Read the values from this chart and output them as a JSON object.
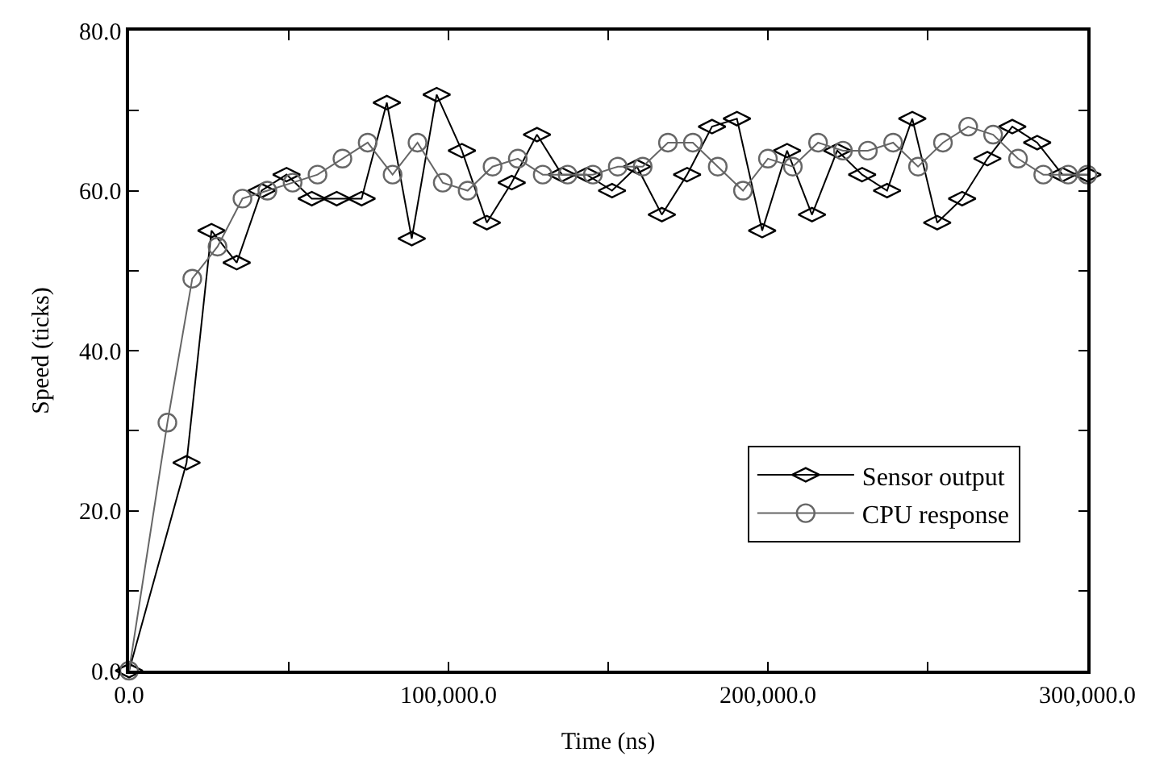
{
  "chart_data": {
    "type": "line",
    "xlabel": "Time (ns)",
    "ylabel": "Speed (ticks)",
    "xlim": [
      0,
      300000
    ],
    "ylim": [
      0,
      80
    ],
    "xticks": [
      {
        "value": 0,
        "label": "0.0"
      },
      {
        "value": 50000,
        "label": null
      },
      {
        "value": 100000,
        "label": "100,000.0"
      },
      {
        "value": 150000,
        "label": null
      },
      {
        "value": 200000,
        "label": "200,000.0"
      },
      {
        "value": 250000,
        "label": null
      },
      {
        "value": 300000,
        "label": "300,000.0"
      }
    ],
    "yticks": [
      {
        "value": 0,
        "label": "0.0"
      },
      {
        "value": 10,
        "label": null
      },
      {
        "value": 20,
        "label": "20.0"
      },
      {
        "value": 30,
        "label": null
      },
      {
        "value": 40,
        "label": "40.0"
      },
      {
        "value": 50,
        "label": null
      },
      {
        "value": 60,
        "label": "60.0"
      },
      {
        "value": 70,
        "label": null
      },
      {
        "value": 80,
        "label": "80.0"
      }
    ],
    "legend": "bottom right",
    "series": [
      {
        "name": "Sensor output",
        "color": "#000000",
        "marker": "diamond",
        "x": [
          0,
          18000,
          25800,
          33700,
          41500,
          49300,
          57200,
          65000,
          72800,
          80700,
          88500,
          96300,
          104200,
          112000,
          119800,
          127700,
          135500,
          143300,
          151200,
          159000,
          166800,
          174700,
          182500,
          190300,
          198200,
          206000,
          213800,
          221700,
          229500,
          237300,
          245200,
          253000,
          260800,
          268700,
          276500,
          284300,
          292200,
          300000
        ],
        "values": [
          0,
          26,
          55,
          51,
          60,
          62,
          59,
          59,
          59,
          71,
          54,
          72,
          65,
          56,
          61,
          67,
          62,
          62,
          60,
          63,
          57,
          62,
          68,
          69,
          55,
          65,
          57,
          65,
          62,
          60,
          69,
          56,
          59,
          64,
          68,
          66,
          62,
          62
        ]
      },
      {
        "name": "CPU response",
        "color": "#666666",
        "marker": "circle",
        "x": [
          0,
          12000,
          19800,
          27700,
          35500,
          43300,
          51200,
          59000,
          66800,
          74700,
          82500,
          90300,
          98200,
          106000,
          113800,
          121700,
          129500,
          137300,
          145200,
          153000,
          160800,
          168700,
          176500,
          184300,
          192200,
          200000,
          207800,
          215700,
          223500,
          231300,
          239200,
          247000,
          254800,
          262700,
          270500,
          278300,
          286200,
          294000,
          300000
        ],
        "values": [
          0,
          31,
          49,
          53,
          59,
          60,
          61,
          62,
          64,
          66,
          62,
          66,
          61,
          60,
          63,
          64,
          62,
          62,
          62,
          63,
          63,
          66,
          66,
          63,
          60,
          64,
          63,
          66,
          65,
          65,
          66,
          63,
          66,
          68,
          67,
          64,
          62,
          62,
          62
        ]
      }
    ]
  }
}
